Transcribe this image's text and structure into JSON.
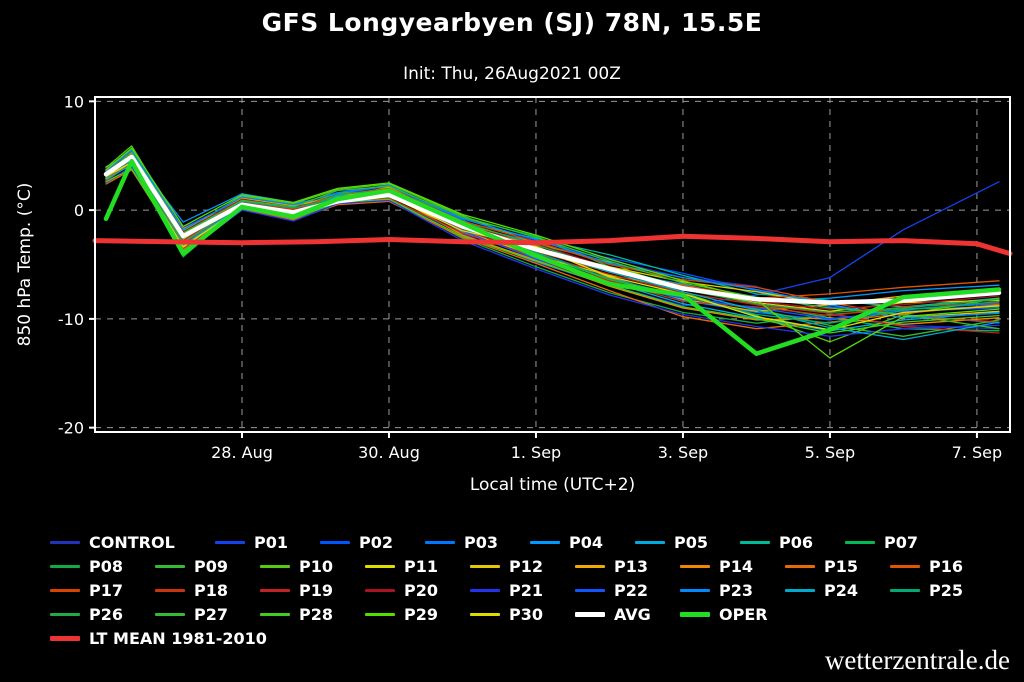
{
  "page": {
    "background": "#000000",
    "watermark": "wetterzentrale.de"
  },
  "header": {
    "title": "GFS Longyearbyen (SJ) 78N, 15.5E",
    "subtitle": "Init: Thu, 26Aug2021 00Z"
  },
  "chart_data": {
    "type": "line",
    "title": "GFS Longyearbyen (SJ) 78N, 15.5E",
    "init_label": "Init: Thu, 26Aug2021 00Z",
    "xlabel": "Local time (UTC+2)",
    "ylabel": "850 hPa Temp. (°C)",
    "ylim": [
      -20,
      10
    ],
    "grid": true,
    "legend_position": "bottom",
    "x_unit_days_from": "26 Aug 2021 00Z",
    "x_ticks": [
      {
        "day": 2,
        "label": "28. Aug"
      },
      {
        "day": 4,
        "label": "30. Aug"
      },
      {
        "day": 6,
        "label": "1. Sep"
      },
      {
        "day": 8,
        "label": "3. Sep"
      },
      {
        "day": 10,
        "label": "5. Sep"
      },
      {
        "day": 12,
        "label": "7. Sep"
      }
    ],
    "y_ticks": [
      10,
      0,
      -10,
      -20
    ],
    "x_days": [
      0.15,
      0.5,
      1.2,
      2.0,
      2.7,
      3.3,
      4.0,
      5.0,
      6.0,
      7.0,
      8.0,
      9.0,
      10.0,
      11.0,
      12.3
    ],
    "series": [
      {
        "name": "CONTROL",
        "color": "#2233bb",
        "width": 1.3,
        "values": [
          3.8,
          5.3,
          -1.6,
          1.0,
          0.4,
          1.4,
          2.0,
          -0.8,
          -2.8,
          -4.6,
          -6.2,
          -7.0,
          -9.6,
          -10.6,
          -10.9
        ]
      },
      {
        "name": "P01",
        "color": "#1144ee",
        "width": 1.3,
        "values": [
          3.0,
          4.3,
          -3.0,
          0.2,
          -0.7,
          0.6,
          1.1,
          -2.2,
          -4.8,
          -6.9,
          -8.8,
          -7.8,
          -6.2,
          -1.8,
          2.6
        ]
      },
      {
        "name": "P02",
        "color": "#0055ff",
        "width": 1.3,
        "values": [
          2.5,
          4.0,
          -2.1,
          0.8,
          -0.1,
          1.1,
          1.6,
          -1.8,
          -3.2,
          -4.4,
          -5.8,
          -7.4,
          -8.9,
          -9.6,
          -10.4
        ]
      },
      {
        "name": "P03",
        "color": "#0077ff",
        "width": 1.3,
        "values": [
          3.5,
          4.6,
          -2.6,
          1.2,
          0.2,
          1.5,
          2.2,
          -0.9,
          -3.9,
          -6.1,
          -8.3,
          -9.4,
          -10.1,
          -9.1,
          -8.6
        ]
      },
      {
        "name": "P04",
        "color": "#0099ff",
        "width": 1.3,
        "values": [
          4.0,
          5.1,
          -1.1,
          1.5,
          0.7,
          1.0,
          1.4,
          -1.3,
          -3.0,
          -5.6,
          -6.8,
          -8.4,
          -8.1,
          -7.4,
          -6.9
        ]
      },
      {
        "name": "P05",
        "color": "#00aadd",
        "width": 1.3,
        "values": [
          3.2,
          4.7,
          -2.9,
          0.5,
          0.0,
          1.2,
          1.7,
          -2.0,
          -4.4,
          -6.6,
          -8.6,
          -9.9,
          -11.1,
          -10.1,
          -9.4
        ]
      },
      {
        "name": "P06",
        "color": "#00bb99",
        "width": 1.3,
        "values": [
          2.8,
          4.4,
          -3.6,
          0.0,
          -0.6,
          0.8,
          1.2,
          -1.1,
          -2.6,
          -4.1,
          -6.0,
          -7.7,
          -8.3,
          -8.9,
          -8.1
        ]
      },
      {
        "name": "P07",
        "color": "#00bb55",
        "width": 1.3,
        "values": [
          3.6,
          5.6,
          -2.3,
          0.9,
          0.3,
          1.3,
          1.9,
          -0.7,
          -2.4,
          -5.2,
          -7.0,
          -8.7,
          -9.9,
          -10.9,
          -11.1
        ]
      },
      {
        "name": "P08",
        "color": "#11aa44",
        "width": 1.3,
        "values": [
          3.1,
          4.2,
          -4.3,
          0.4,
          -0.5,
          0.9,
          1.0,
          -2.6,
          -5.2,
          -7.6,
          -9.4,
          -10.4,
          -9.6,
          -9.1,
          -8.9
        ]
      },
      {
        "name": "P09",
        "color": "#33bb33",
        "width": 1.3,
        "values": [
          2.6,
          3.9,
          -3.9,
          0.7,
          0.1,
          1.6,
          1.5,
          -1.4,
          -4.0,
          -6.4,
          -8.0,
          -9.1,
          -10.6,
          -11.6,
          -10.1
        ]
      },
      {
        "name": "P10",
        "color": "#55cc11",
        "width": 1.3,
        "values": [
          3.9,
          5.9,
          -1.9,
          1.3,
          0.6,
          1.9,
          2.4,
          -0.5,
          -3.1,
          -4.8,
          -7.6,
          -9.7,
          -12.1,
          -9.6,
          -8.1
        ]
      },
      {
        "name": "P11",
        "color": "#dddd00",
        "width": 1.3,
        "values": [
          3.4,
          4.8,
          -2.7,
          0.6,
          -0.2,
          0.7,
          1.3,
          -1.9,
          -4.2,
          -6.0,
          -7.2,
          -8.5,
          -9.3,
          -8.5,
          -8.3
        ]
      },
      {
        "name": "P12",
        "color": "#e6c800",
        "width": 1.3,
        "values": [
          2.9,
          4.4,
          -3.3,
          0.3,
          -0.4,
          1.1,
          1.6,
          -1.7,
          -3.5,
          -5.2,
          -6.6,
          -7.5,
          -8.7,
          -9.9,
          -9.3
        ]
      },
      {
        "name": "P13",
        "color": "#eeaa00",
        "width": 1.3,
        "values": [
          3.7,
          5.2,
          -2.2,
          1.1,
          0.4,
          1.2,
          2.1,
          -1.2,
          -3.3,
          -6.2,
          -8.2,
          -9.3,
          -8.7,
          -7.9,
          -7.3
        ]
      },
      {
        "name": "P14",
        "color": "#ee8800",
        "width": 1.3,
        "values": [
          3.3,
          5.0,
          -1.7,
          0.8,
          0.2,
          0.9,
          1.5,
          -2.3,
          -4.6,
          -7.0,
          -9.0,
          -10.1,
          -9.9,
          -10.5,
          -9.9
        ]
      },
      {
        "name": "P15",
        "color": "#e86a00",
        "width": 1.3,
        "values": [
          2.4,
          3.7,
          -3.7,
          0.1,
          -0.9,
          0.5,
          0.8,
          -2.5,
          -4.9,
          -7.4,
          -9.8,
          -10.9,
          -10.3,
          -9.5,
          -8.7
        ]
      },
      {
        "name": "P16",
        "color": "#e05500",
        "width": 1.3,
        "values": [
          3.0,
          4.1,
          -3.0,
          0.5,
          -0.1,
          1.0,
          1.7,
          -1.5,
          -3.8,
          -5.7,
          -6.9,
          -8.1,
          -7.7,
          -7.1,
          -6.5
        ]
      },
      {
        "name": "P17",
        "color": "#d84400",
        "width": 1.3,
        "values": [
          3.5,
          5.4,
          -2.5,
          0.9,
          0.1,
          1.4,
          2.0,
          -1.0,
          -2.9,
          -5.0,
          -6.4,
          -7.1,
          -8.5,
          -9.7,
          -10.3
        ]
      },
      {
        "name": "P18",
        "color": "#cc3311",
        "width": 1.3,
        "values": [
          2.7,
          4.3,
          -3.5,
          0.2,
          -0.7,
          0.8,
          1.1,
          -2.1,
          -4.3,
          -6.5,
          -8.4,
          -8.9,
          -9.7,
          -8.9,
          -8.5
        ]
      },
      {
        "name": "P19",
        "color": "#c22222",
        "width": 1.3,
        "values": [
          3.2,
          4.9,
          -2.8,
          0.7,
          0.0,
          1.1,
          1.8,
          -1.8,
          -4.1,
          -5.9,
          -7.6,
          -8.7,
          -9.5,
          -10.7,
          -11.3
        ]
      },
      {
        "name": "P20",
        "color": "#aa1122",
        "width": 1.3,
        "values": [
          3.8,
          5.1,
          -2.0,
          1.0,
          0.3,
          1.0,
          1.6,
          -1.4,
          -3.1,
          -5.3,
          -7.1,
          -8.4,
          -9.1,
          -8.7,
          -7.9
        ]
      },
      {
        "name": "P21",
        "color": "#2233ee",
        "width": 1.3,
        "values": [
          2.5,
          4.0,
          -4.0,
          0.0,
          -1.0,
          0.6,
          0.9,
          -2.8,
          -5.4,
          -7.8,
          -9.6,
          -10.7,
          -11.6,
          -10.9,
          -10.6
        ]
      },
      {
        "name": "P22",
        "color": "#1155ff",
        "width": 1.3,
        "values": [
          3.1,
          4.6,
          -2.4,
          0.6,
          -0.3,
          0.9,
          1.5,
          -1.9,
          -4.5,
          -6.7,
          -8.1,
          -9.0,
          -10.0,
          -9.3,
          -9.0
        ]
      },
      {
        "name": "P23",
        "color": "#0088ff",
        "width": 1.3,
        "values": [
          3.6,
          5.5,
          -1.8,
          1.2,
          0.5,
          1.6,
          2.3,
          -0.8,
          -2.7,
          -4.9,
          -6.2,
          -7.3,
          -8.7,
          -9.9,
          -9.5
        ]
      },
      {
        "name": "P24",
        "color": "#00aacc",
        "width": 1.3,
        "values": [
          2.8,
          4.2,
          -3.2,
          0.4,
          -0.5,
          1.3,
          1.4,
          -1.6,
          -3.6,
          -5.7,
          -7.5,
          -9.2,
          -10.8,
          -11.9,
          -10.3
        ]
      },
      {
        "name": "P25",
        "color": "#00aa77",
        "width": 1.3,
        "values": [
          3.3,
          4.7,
          -2.6,
          0.8,
          0.2,
          1.1,
          1.7,
          -1.7,
          -3.9,
          -6.3,
          -7.9,
          -9.6,
          -10.4,
          -9.2,
          -8.4
        ]
      },
      {
        "name": "P26",
        "color": "#22aa44",
        "width": 1.3,
        "values": [
          3.0,
          4.5,
          -2.9,
          0.5,
          -0.2,
          1.4,
          1.9,
          -1.1,
          -3.2,
          -5.5,
          -7.3,
          -8.6,
          -9.4,
          -9.0,
          -8.2
        ]
      },
      {
        "name": "P27",
        "color": "#33bb33",
        "width": 1.3,
        "values": [
          3.4,
          5.3,
          -2.1,
          0.9,
          0.3,
          1.8,
          2.2,
          -0.6,
          -2.5,
          -4.7,
          -6.7,
          -8.0,
          -9.0,
          -9.6,
          -10.9
        ]
      },
      {
        "name": "P28",
        "color": "#44cc22",
        "width": 1.3,
        "values": [
          2.6,
          3.8,
          -3.8,
          0.2,
          -0.8,
          0.7,
          1.0,
          -2.4,
          -4.7,
          -6.9,
          -8.9,
          -10.0,
          -11.3,
          -10.3,
          -9.7
        ]
      },
      {
        "name": "P29",
        "color": "#55dd00",
        "width": 1.3,
        "values": [
          3.7,
          5.7,
          -1.5,
          1.4,
          0.7,
          2.0,
          2.5,
          -0.4,
          -2.3,
          -4.5,
          -6.5,
          -8.2,
          -13.6,
          -9.8,
          -9.1
        ]
      },
      {
        "name": "P30",
        "color": "#dddd00",
        "width": 1.3,
        "values": [
          3.1,
          4.4,
          -3.4,
          0.3,
          -0.1,
          0.8,
          1.3,
          -1.9,
          -3.4,
          -6.1,
          -7.7,
          -9.8,
          -11.0,
          -9.4,
          -8.8
        ]
      },
      {
        "name": "AVG",
        "color": "#ffffff",
        "width": 4.5,
        "values": [
          3.3,
          4.9,
          -2.4,
          0.5,
          -0.2,
          0.8,
          1.4,
          -1.5,
          -3.6,
          -5.4,
          -7.2,
          -8.2,
          -8.5,
          -8.3,
          -7.6
        ]
      },
      {
        "name": "OPER",
        "color": "#22dd22",
        "width": 4.5,
        "values": [
          -0.8,
          4.5,
          -4.0,
          0.3,
          -0.6,
          1.0,
          1.8,
          -1.2,
          -4.2,
          -6.8,
          -7.8,
          -13.2,
          -11.0,
          -8.0,
          -7.3
        ]
      },
      {
        "name": "LT MEAN 1981-2010",
        "color": "#ee3333",
        "width": 5,
        "x_days": [
          0,
          1,
          2,
          3,
          4,
          5,
          6,
          7,
          8,
          9,
          10,
          11,
          12,
          12.45
        ],
        "values": [
          -2.8,
          -2.9,
          -3.0,
          -2.9,
          -2.7,
          -2.9,
          -3.0,
          -2.8,
          -2.4,
          -2.6,
          -2.9,
          -2.8,
          -3.1,
          -4.0
        ]
      }
    ],
    "legend_rows": [
      [
        "CONTROL",
        "P01",
        "P02",
        "P03",
        "P04",
        "P05",
        "P06",
        "P07"
      ],
      [
        "P08",
        "P09",
        "P10",
        "P11",
        "P12",
        "P13",
        "P14",
        "P15",
        "P16"
      ],
      [
        "P17",
        "P18",
        "P19",
        "P20",
        "P21",
        "P22",
        "P23",
        "P24",
        "P25"
      ],
      [
        "P26",
        "P27",
        "P28",
        "P29",
        "P30",
        "AVG",
        "OPER"
      ],
      [
        "LT MEAN 1981-2010"
      ]
    ]
  }
}
